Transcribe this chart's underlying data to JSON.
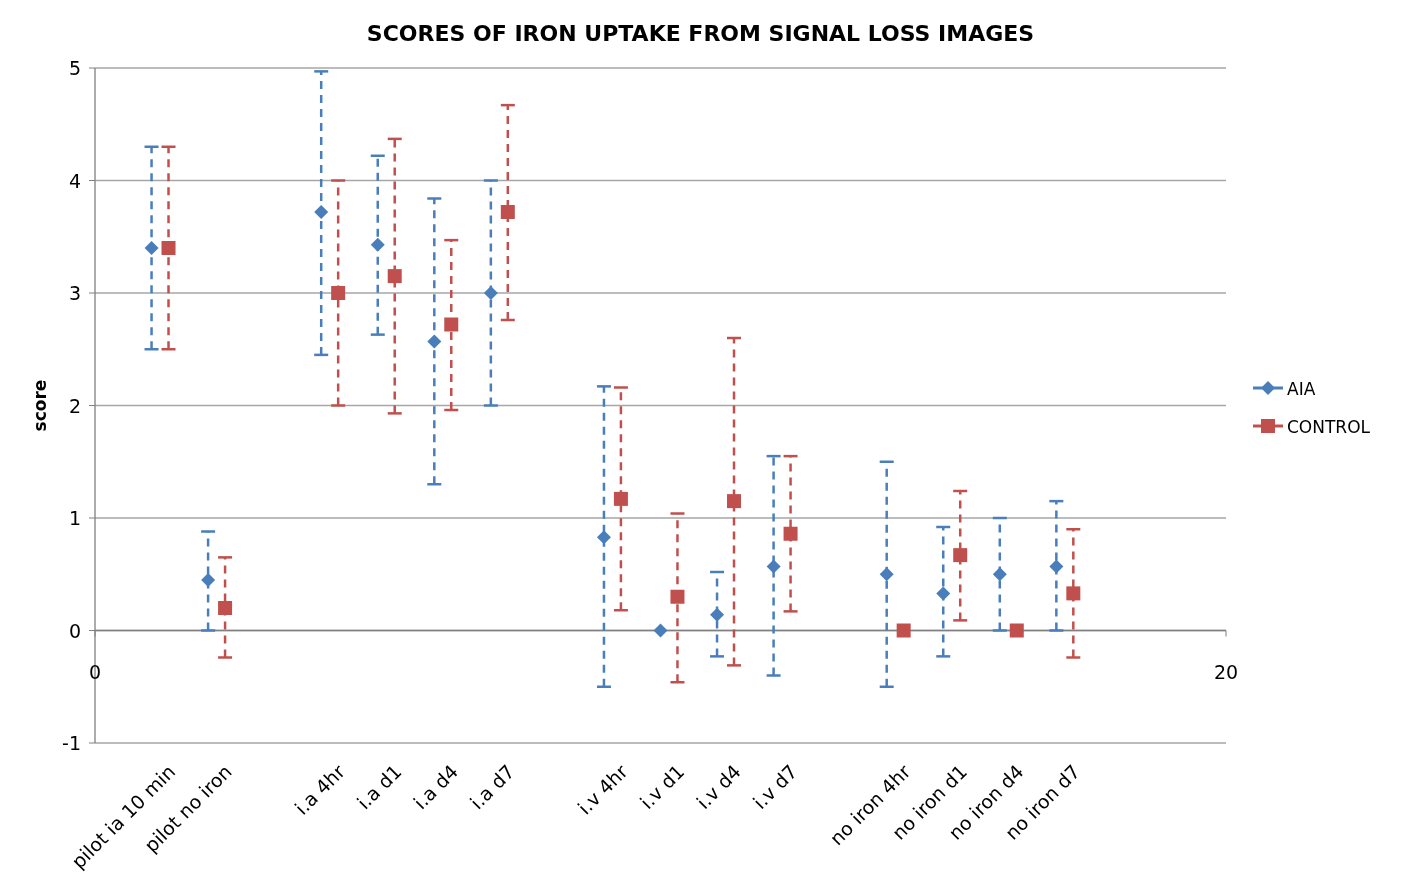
{
  "chart_data": {
    "type": "scatter",
    "title": "SCORES OF IRON UPTAKE FROM SIGNAL LOSS IMAGES",
    "ylabel": "score",
    "xlim": [
      0,
      20
    ],
    "xticks": [
      0,
      20
    ],
    "ylim": [
      -1,
      5
    ],
    "yticks": [
      -1,
      0,
      1,
      2,
      3,
      4,
      5
    ],
    "grid": "y",
    "legend": "right",
    "series": [
      {
        "name": "AIA",
        "color": "#4a7ebb",
        "marker": "diamond",
        "x": [
          1,
          2,
          4,
          5,
          6,
          7,
          9,
          10,
          11,
          12,
          14,
          15,
          16,
          17
        ],
        "values": [
          3.4,
          0.45,
          3.72,
          3.43,
          2.57,
          3.0,
          0.83,
          0.0,
          0.14,
          0.57,
          0.5,
          0.33,
          0.5,
          0.57
        ],
        "errors": [
          [
            2.5,
            4.3
          ],
          [
            0,
            0.88
          ],
          [
            2.45,
            4.97
          ],
          [
            2.63,
            4.22
          ],
          [
            1.3,
            3.84
          ],
          [
            2.0,
            4.0
          ],
          [
            -0.5,
            2.17
          ],
          null,
          [
            -0.23,
            0.52
          ],
          [
            -0.4,
            1.55
          ],
          [
            -0.5,
            1.5
          ],
          [
            -0.23,
            0.92
          ],
          [
            0,
            1.0
          ],
          [
            0,
            1.15
          ]
        ]
      },
      {
        "name": "CONTROL",
        "color": "#c0504d",
        "marker": "square",
        "x": [
          1.3,
          2.3,
          4.3,
          5.3,
          6.3,
          7.3,
          9.3,
          10.3,
          11.3,
          12.3,
          14.3,
          15.3,
          16.3,
          17.3
        ],
        "values": [
          3.4,
          0.2,
          3.0,
          3.15,
          2.72,
          3.72,
          1.17,
          0.3,
          1.15,
          0.86,
          0.0,
          0.67,
          0.0,
          0.33
        ],
        "errors": [
          [
            2.5,
            4.3
          ],
          [
            -0.24,
            0.65
          ],
          [
            2.0,
            4.0
          ],
          [
            1.93,
            4.37
          ],
          [
            1.96,
            3.47
          ],
          [
            2.76,
            4.67
          ],
          [
            0.18,
            2.16
          ],
          [
            -0.46,
            1.04
          ],
          [
            -0.31,
            2.6
          ],
          [
            0.17,
            1.55
          ],
          null,
          [
            0.09,
            1.24
          ],
          null,
          [
            -0.24,
            0.9
          ]
        ]
      }
    ],
    "annotations": [
      "pilot  ia 10 min",
      "pilot no iron",
      "i.a 4hr",
      "i.a d1",
      "i.a d4",
      "i.a d7",
      "i.v 4hr",
      "i.v d1",
      "i.v d4",
      "i.v d7",
      "no iron 4hr",
      "no iron d1",
      "no iron d4",
      "no iron d7"
    ]
  }
}
